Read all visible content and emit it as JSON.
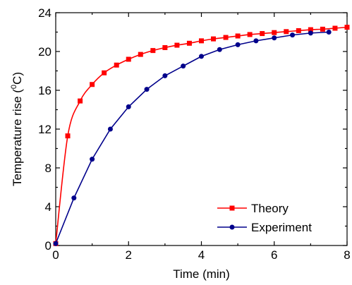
{
  "chart_data": {
    "type": "line",
    "xlabel": "Time (min)",
    "ylabel": {
      "prefix": "Temperature rise (",
      "sup": "0",
      "suffix": "C)"
    },
    "xlim": [
      0,
      8
    ],
    "ylim": [
      0,
      24
    ],
    "xticks": [
      0,
      2,
      4,
      6,
      8
    ],
    "xtick_labels": [
      "0",
      "2",
      "4",
      "6",
      "8"
    ],
    "yticks": [
      0,
      4,
      8,
      12,
      16,
      20,
      24
    ],
    "ytick_labels": [
      "0",
      "4",
      "8",
      "12",
      "16",
      "20",
      "24"
    ],
    "grid": false,
    "legend_position": "bottom-right",
    "series": [
      {
        "name": "Theory",
        "color": "#ff0000",
        "marker": "square",
        "line": "smooth",
        "x": [
          0,
          0.33,
          0.67,
          1.0,
          1.33,
          1.67,
          2.0,
          2.33,
          2.67,
          3.0,
          3.33,
          3.67,
          4.0,
          4.33,
          4.67,
          5.0,
          5.33,
          5.67,
          6.0,
          6.33,
          6.67,
          7.0,
          7.33,
          7.67,
          8.0
        ],
        "y": [
          0.2,
          11.3,
          14.9,
          16.6,
          17.8,
          18.6,
          19.2,
          19.7,
          20.1,
          20.4,
          20.65,
          20.85,
          21.1,
          21.3,
          21.45,
          21.6,
          21.75,
          21.85,
          21.95,
          22.05,
          22.15,
          22.25,
          22.3,
          22.4,
          22.5
        ]
      },
      {
        "name": "Experiment",
        "color": "#00008b",
        "marker": "circle",
        "line": "straight",
        "x": [
          0,
          0.5,
          1.0,
          1.5,
          2.0,
          2.5,
          3.0,
          3.5,
          4.0,
          4.5,
          5.0,
          5.5,
          6.0,
          6.5,
          7.0,
          7.5
        ],
        "y": [
          0.2,
          4.9,
          8.9,
          12.0,
          14.3,
          16.1,
          17.5,
          18.5,
          19.5,
          20.2,
          20.7,
          21.1,
          21.4,
          21.7,
          21.9,
          22.0
        ]
      }
    ]
  }
}
